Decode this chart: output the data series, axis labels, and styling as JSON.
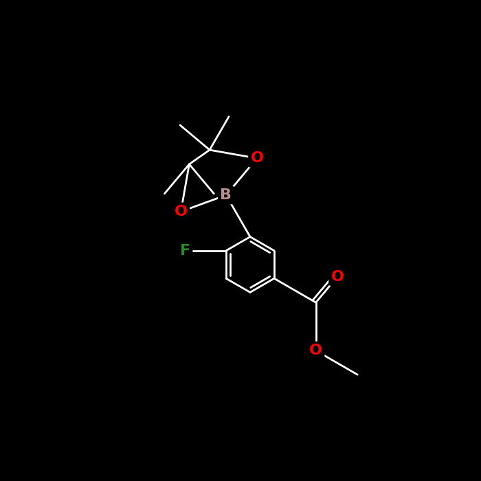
{
  "background_color": "#000000",
  "bond_color": "#ffffff",
  "atom_colors": {
    "B": "#bc8f8f",
    "O": "#ff0000",
    "F": "#228B22",
    "default": "#ffffff"
  },
  "line_width": 2.0,
  "figsize": [
    7.0,
    7.0
  ],
  "dpi": 100,
  "font_size": 16
}
